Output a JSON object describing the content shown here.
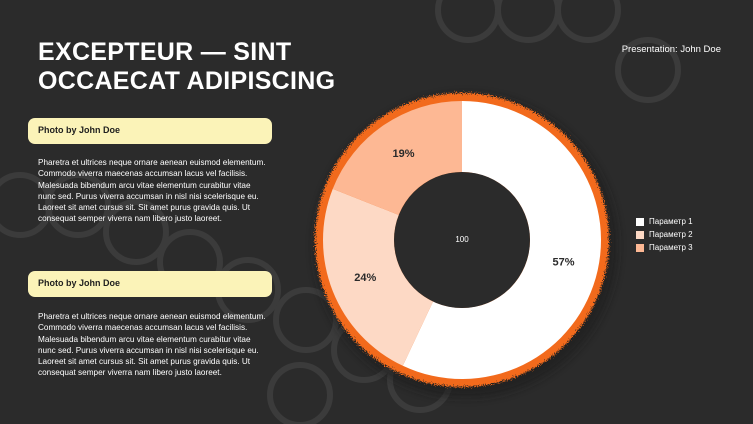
{
  "slide": {
    "title": "EXCEPTEUR — SINT\nOCCAECAT ADIPISCING",
    "presenter": "Presentation: John Doe"
  },
  "sections": [
    {
      "header": "Photo by John Doe",
      "text": "Pharetra et ultrices neque ornare aenean euismod elementum. Commodo viverra maecenas accumsan lacus vel facilisis. Malesuada bibendum arcu vitae elementum curabitur vitae nunc sed. Purus viverra accumsan in nisl nisi scelerisque eu. Laoreet sit amet cursus sit. Sit amet purus gravida quis. Ut consequat semper viverra nam libero justo laoreet."
    },
    {
      "header": "Photo by John Doe",
      "text": "Pharetra et ultrices neque ornare aenean euismod elementum. Commodo viverra maecenas accumsan lacus vel facilisis. Malesuada bibendum arcu vitae elementum curabitur vitae nunc sed. Purus viverra accumsan in nisl nisi scelerisque eu. Laoreet sit amet cursus sit. Sit amet purus gravida quis. Ut consequat semper viverra nam libero justo laoreet."
    }
  ],
  "chart_data": {
    "type": "pie",
    "style": "donut",
    "center_label": "100",
    "categories": [
      "Параметр 1",
      "Параметр 2",
      "Параметр 3"
    ],
    "values": [
      57,
      24,
      19
    ],
    "data_labels": [
      "57%",
      "24%",
      "19%"
    ],
    "colors": [
      "#ffffff",
      "#fdd9c5",
      "#fdb894"
    ],
    "legend_position": "right",
    "ring_color": "#f26a1b"
  },
  "colors": {
    "background": "#2b2b2b",
    "pill": "#fbf3b8",
    "accent": "#f26a1b"
  }
}
